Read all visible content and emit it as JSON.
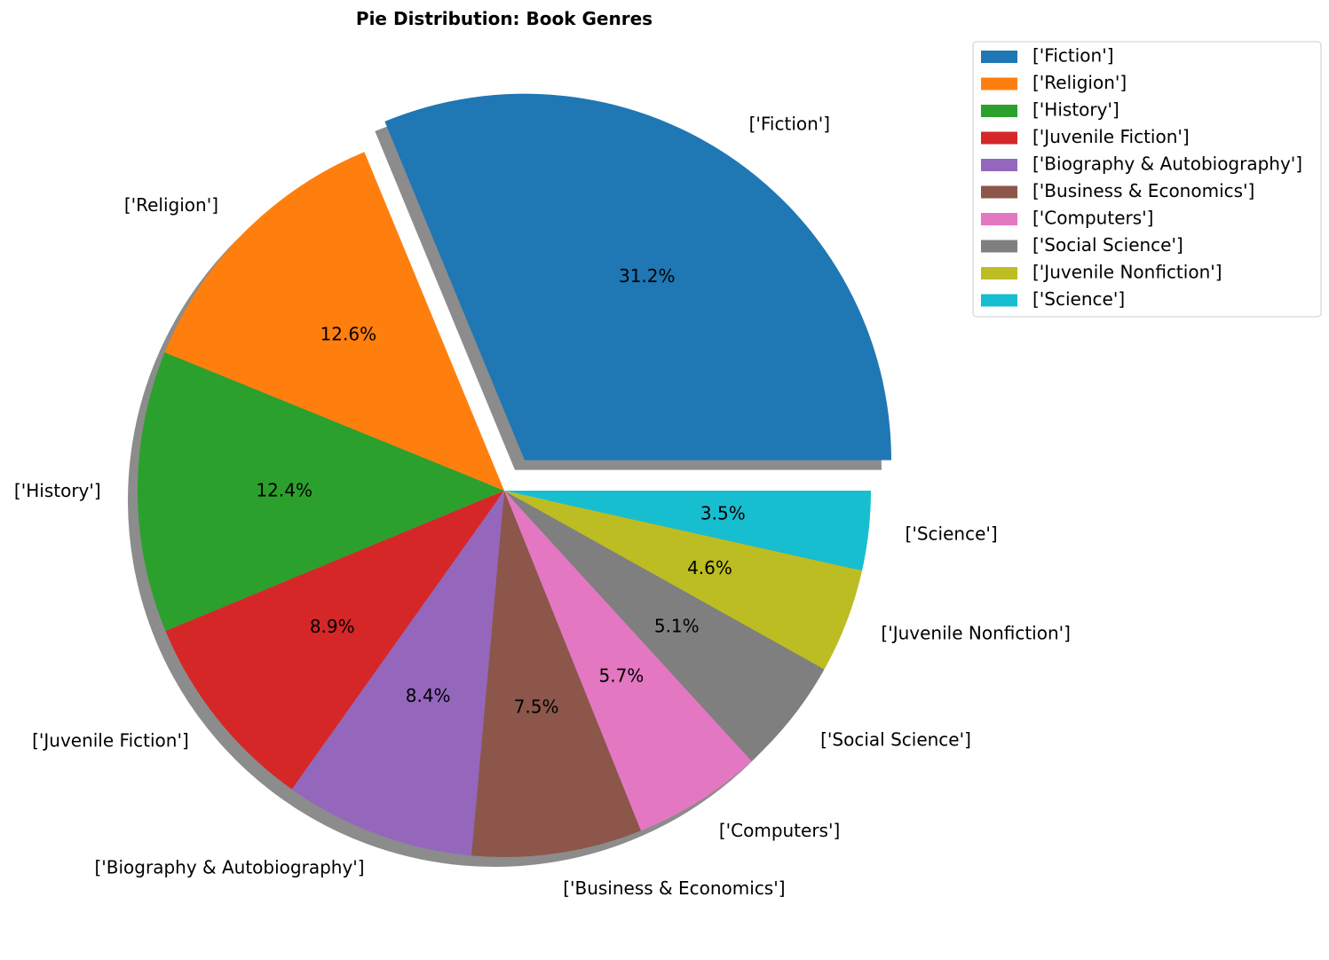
{
  "chart_data": {
    "type": "pie",
    "title": "Pie Distribution: Book Genres",
    "labels": [
      "['Fiction']",
      "['Religion']",
      "['History']",
      "['Juvenile Fiction']",
      "['Biography & Autobiography']",
      "['Business & Economics']",
      "['Computers']",
      "['Social Science']",
      "['Juvenile Nonfiction']",
      "['Science']"
    ],
    "values": [
      31.2,
      12.6,
      12.4,
      8.9,
      8.4,
      7.5,
      5.7,
      5.1,
      4.6,
      3.5
    ],
    "percent_labels": [
      "31.2%",
      "12.6%",
      "12.4%",
      "8.9%",
      "8.4%",
      "7.5%",
      "5.7%",
      "5.1%",
      "4.6%",
      "3.5%"
    ],
    "colors": [
      "#1f77b4",
      "#ff7f0e",
      "#2ca02c",
      "#d62728",
      "#9467bd",
      "#8c564b",
      "#e377c2",
      "#7f7f7f",
      "#bcbd22",
      "#17becf"
    ],
    "explode": [
      0.1,
      0,
      0,
      0,
      0,
      0,
      0,
      0,
      0,
      0
    ],
    "shadow": true,
    "start_angle_deg": 0,
    "direction": "counterclockwise",
    "legend_position": "top-right"
  }
}
